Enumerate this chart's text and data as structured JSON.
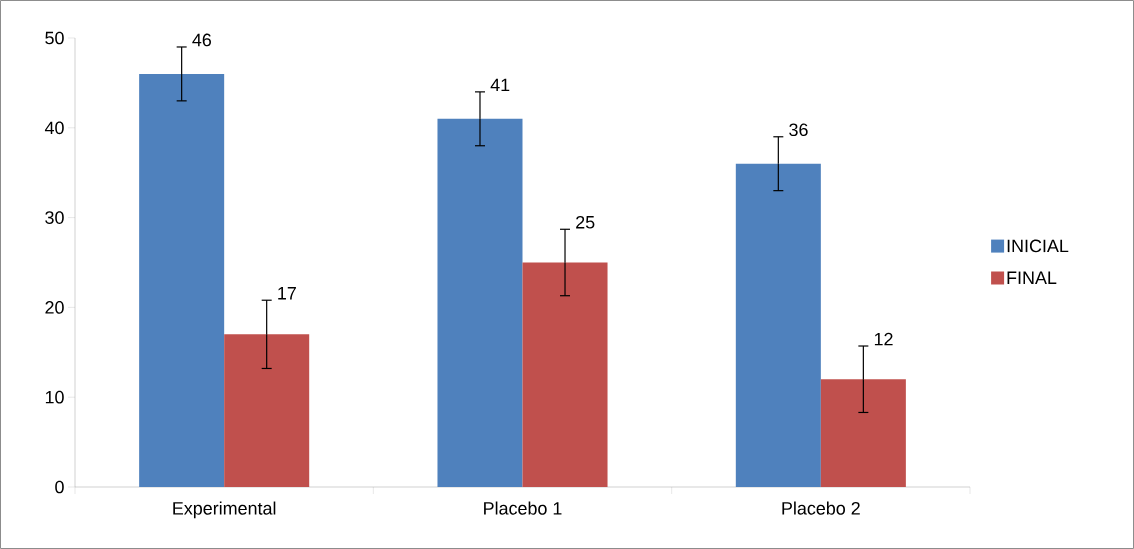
{
  "chart_data": {
    "type": "bar",
    "categories": [
      "Experimental",
      "Placebo 1",
      "Placebo 2"
    ],
    "series": [
      {
        "name": "INICIAL",
        "color": "#4f81bd",
        "values": [
          46,
          41,
          36
        ],
        "errors": [
          3,
          3,
          3
        ]
      },
      {
        "name": "FINAL",
        "color": "#c0504d",
        "values": [
          17,
          25,
          12
        ],
        "errors": [
          3.8,
          3.7,
          3.7
        ]
      }
    ],
    "ylim": [
      0,
      50
    ],
    "yticks": [
      0,
      10,
      20,
      30,
      40,
      50
    ],
    "data_labels": true,
    "legend": "right",
    "grid": false
  }
}
